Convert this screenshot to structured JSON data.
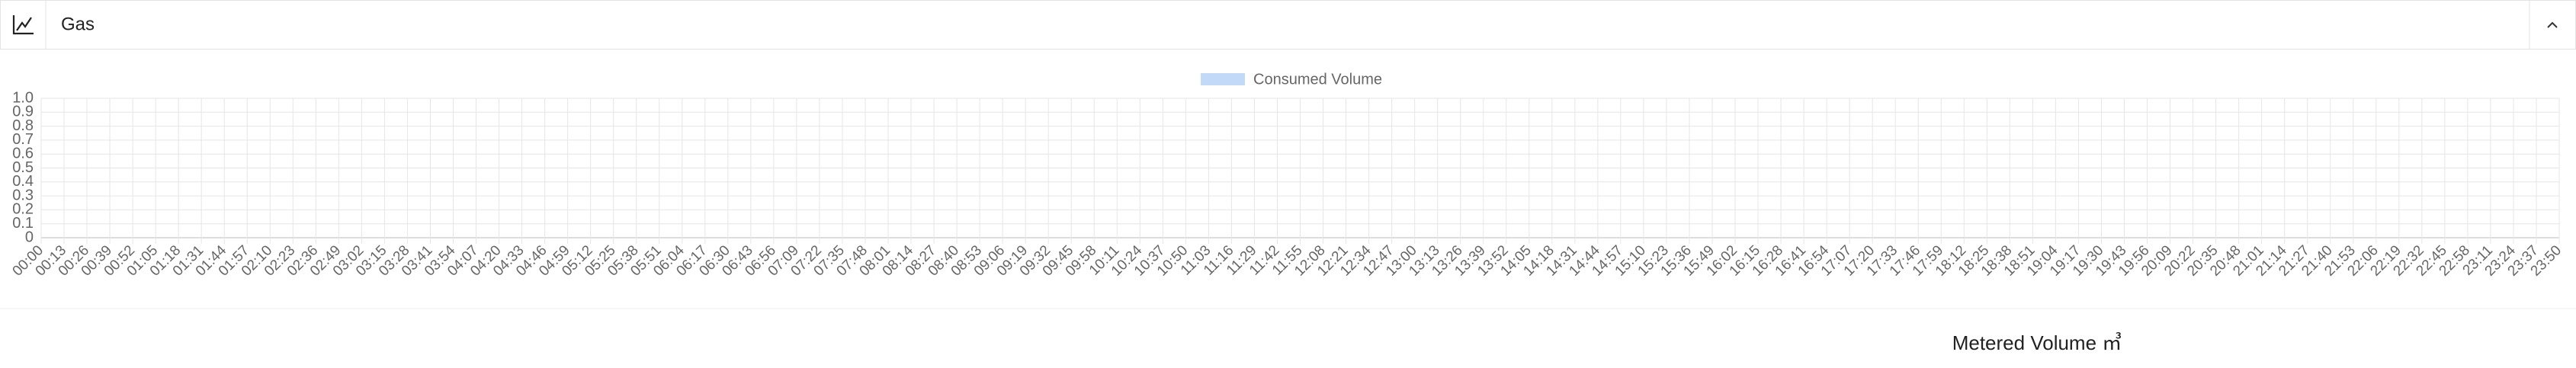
{
  "header": {
    "title": "Gas"
  },
  "chart_data": {
    "type": "line",
    "series": [
      {
        "name": "Consumed Volume",
        "color": "#c2d9f7"
      }
    ],
    "x_label": "Metered Volume ㎥",
    "ylim": [
      0,
      1
    ],
    "yticks": [
      0,
      0.1,
      0.2,
      0.3,
      0.4,
      0.5,
      0.6,
      0.7,
      0.8,
      0.9,
      {
        "value": 1,
        "label": "1.0"
      }
    ],
    "grid": true,
    "legend": "top",
    "categories": [
      "00:00",
      "00:13",
      "00:26",
      "00:39",
      "00:52",
      "01:05",
      "01:18",
      "01:31",
      "01:44",
      "01:57",
      "02:10",
      "02:23",
      "02:36",
      "02:49",
      "03:02",
      "03:15",
      "03:28",
      "03:41",
      "03:54",
      "04:07",
      "04:20",
      "04:33",
      "04:46",
      "04:59",
      "05:12",
      "05:25",
      "05:38",
      "05:51",
      "06:04",
      "06:17",
      "06:30",
      "06:43",
      "06:56",
      "07:09",
      "07:22",
      "07:35",
      "07:48",
      "08:01",
      "08:14",
      "08:27",
      "08:40",
      "08:53",
      "09:06",
      "09:19",
      "09:32",
      "09:45",
      "09:58",
      "10:11",
      "10:24",
      "10:37",
      "10:50",
      "11:03",
      "11:16",
      "11:29",
      "11:42",
      "11:55",
      "12:08",
      "12:21",
      "12:34",
      "12:47",
      "13:00",
      "13:13",
      "13:26",
      "13:39",
      "13:52",
      "14:05",
      "14:18",
      "14:31",
      "14:44",
      "14:57",
      "15:10",
      "15:23",
      "15:36",
      "15:49",
      "16:02",
      "16:15",
      "16:28",
      "16:41",
      "16:54",
      "17:07",
      "17:20",
      "17:33",
      "17:46",
      "17:59",
      "18:12",
      "18:25",
      "18:38",
      "18:51",
      "19:04",
      "19:17",
      "19:30",
      "19:43",
      "19:56",
      "20:09",
      "20:22",
      "20:35",
      "20:48",
      "21:01",
      "21:14",
      "21:27",
      "21:40",
      "21:53",
      "22:06",
      "22:19",
      "22:32",
      "22:45",
      "22:58",
      "23:11",
      "23:24",
      "23:37",
      "23:50"
    ]
  }
}
